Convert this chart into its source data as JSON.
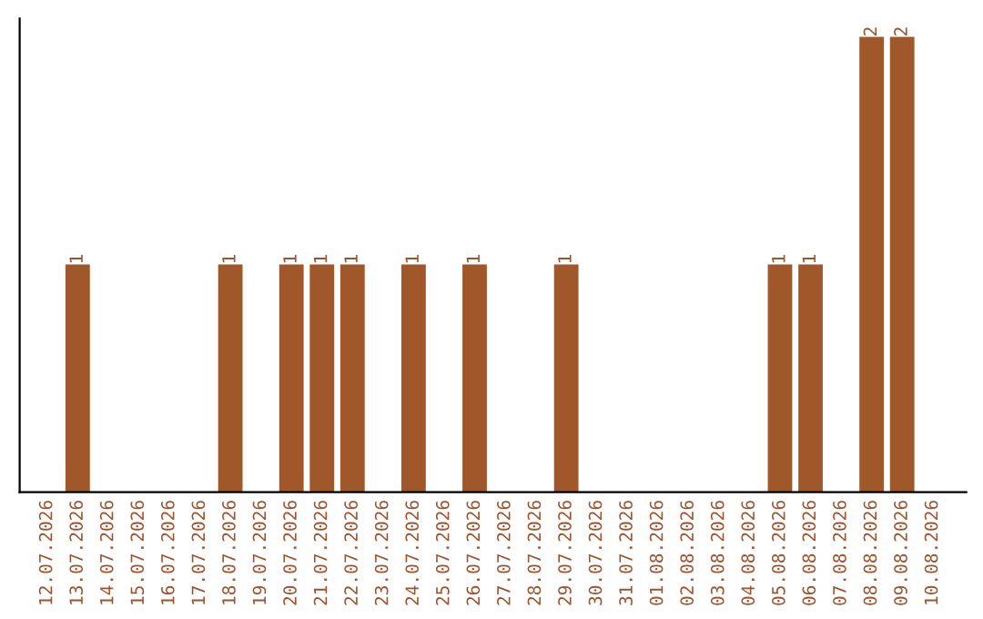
{
  "chart_data": {
    "type": "bar",
    "categories": [
      "12.07.2026",
      "13.07.2026",
      "14.07.2026",
      "15.07.2026",
      "16.07.2026",
      "17.07.2026",
      "18.07.2026",
      "19.07.2026",
      "20.07.2026",
      "21.07.2026",
      "22.07.2026",
      "23.07.2026",
      "24.07.2026",
      "25.07.2026",
      "26.07.2026",
      "27.07.2026",
      "28.07.2026",
      "29.07.2026",
      "30.07.2026",
      "31.07.2026",
      "01.08.2026",
      "02.08.2026",
      "03.08.2026",
      "04.08.2026",
      "05.08.2026",
      "06.08.2026",
      "07.08.2026",
      "08.08.2026",
      "09.08.2026",
      "10.08.2026"
    ],
    "values": [
      0,
      1,
      0,
      0,
      0,
      0,
      1,
      0,
      1,
      1,
      1,
      0,
      1,
      0,
      1,
      0,
      0,
      1,
      0,
      0,
      0,
      0,
      0,
      0,
      1,
      1,
      0,
      2,
      2,
      0
    ],
    "value_labels": [
      null,
      "1",
      null,
      null,
      null,
      null,
      "1",
      null,
      "1",
      "1",
      "1",
      null,
      "1",
      null,
      "1",
      null,
      null,
      "1",
      null,
      null,
      null,
      null,
      null,
      null,
      "1",
      "1",
      null,
      "2",
      "2",
      null
    ],
    "color": "#a0572a",
    "tick_labels": "x",
    "grid": false,
    "legend": false
  }
}
